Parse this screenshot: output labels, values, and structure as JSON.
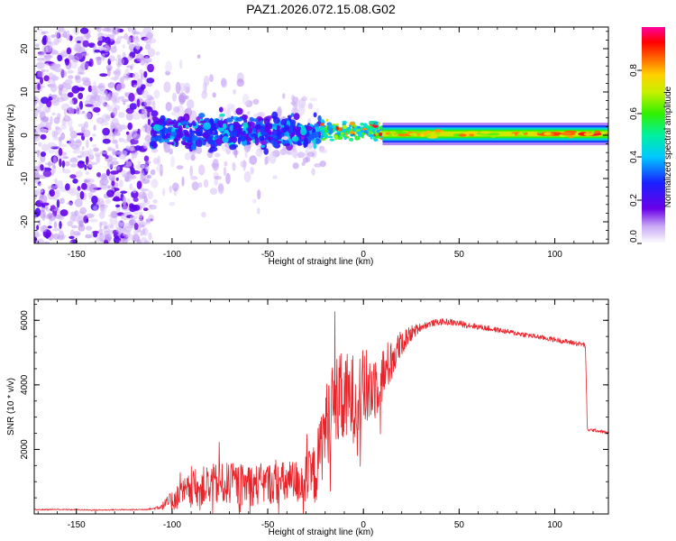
{
  "figure_title": "PAZ1.2026.072.15.08.G02",
  "colors": {
    "snr_line": "#e8232a",
    "axis": "#000000",
    "background": "#ffffff"
  },
  "chart_data": [
    {
      "type": "heatmap",
      "title": "PAZ1.2026.072.15.08.G02",
      "xlabel": "Height of straight line (km)",
      "ylabel": "Frequency (Hz)",
      "xlim": [
        -172,
        128
      ],
      "ylim": [
        -25,
        25
      ],
      "xticks": [
        -150,
        -100,
        -50,
        0,
        50,
        100
      ],
      "yticks": [
        -20,
        -10,
        0,
        10,
        20
      ],
      "xtick_labels": [
        "-150",
        "-100",
        "-50",
        "0",
        "50",
        "100"
      ],
      "ytick_labels": [
        "-20",
        "-10",
        "0",
        "10",
        "20"
      ],
      "grid": false,
      "colorbar": {
        "label": "Normalized spectral amplitude",
        "range": [
          0,
          1
        ],
        "ticks": [
          0.0,
          0.2,
          0.4,
          0.6,
          0.8
        ],
        "tick_labels": [
          "0.0",
          "0.2",
          "0.4",
          "0.6",
          "0.8"
        ],
        "colormap": "rainbow (white-purple-blue-cyan-green-yellow-red-magenta)"
      },
      "regions": [
        {
          "x_range": [
            -172,
            -110
          ],
          "freq_spread": 25,
          "amplitude": 0.05,
          "description": "scattered noise"
        },
        {
          "x_range": [
            -110,
            -22
          ],
          "freq_center": 0.5,
          "freq_spread": 5,
          "amplitude": 0.25
        },
        {
          "x_range": [
            -22,
            10
          ],
          "freq_center": 1,
          "freq_spread": 2,
          "amplitude": 0.6
        },
        {
          "x_range": [
            10,
            128
          ],
          "freq_center": 0,
          "freq_spread": 1,
          "amplitude": 0.9
        }
      ]
    },
    {
      "type": "line",
      "title": "",
      "xlabel": "Height of straight line (km)",
      "ylabel": "SNR (10 * v/v)",
      "xlim": [
        -172,
        128
      ],
      "ylim": [
        0,
        6650
      ],
      "xticks": [
        -150,
        -100,
        -50,
        0,
        50,
        100
      ],
      "yticks": [
        2000,
        4000,
        6000
      ],
      "xtick_labels": [
        "-150",
        "-100",
        "-50",
        "0",
        "50",
        "100"
      ],
      "ytick_labels": [
        "2000",
        "4000",
        "6000"
      ],
      "grid": false,
      "series": [
        {
          "name": "SNR",
          "x": [
            -172,
            -160,
            -150,
            -140,
            -130,
            -120,
            -115,
            -110,
            -105,
            -100,
            -95,
            -90,
            -85,
            -80,
            -75,
            -70,
            -65,
            -60,
            -55,
            -50,
            -45,
            -40,
            -35,
            -30,
            -25,
            -20,
            -15,
            -10,
            -5,
            0,
            5,
            10,
            15,
            20,
            25,
            30,
            35,
            40,
            45,
            50,
            55,
            60,
            65,
            70,
            75,
            80,
            85,
            90,
            95,
            100,
            105,
            110,
            115,
            116,
            117,
            120,
            125,
            128
          ],
          "values": [
            130,
            140,
            130,
            120,
            130,
            130,
            140,
            160,
            250,
            420,
            600,
            750,
            850,
            900,
            900,
            950,
            900,
            900,
            900,
            950,
            950,
            950,
            1000,
            1050,
            1250,
            2700,
            3400,
            3500,
            3600,
            3800,
            3950,
            4300,
            4800,
            5300,
            5600,
            5800,
            5900,
            5950,
            5950,
            5900,
            5850,
            5800,
            5750,
            5700,
            5650,
            5600,
            5550,
            5500,
            5450,
            5400,
            5350,
            5300,
            5250,
            5200,
            2600,
            2600,
            2550,
            2500
          ],
          "noise_amplitude": [
            20,
            20,
            20,
            20,
            20,
            20,
            20,
            30,
            120,
            300,
            450,
            550,
            600,
            650,
            650,
            650,
            650,
            650,
            650,
            650,
            650,
            700,
            700,
            800,
            1000,
            1300,
            1500,
            1500,
            1400,
            1300,
            1200,
            900,
            700,
            400,
            250,
            120,
            100,
            100,
            100,
            100,
            100,
            90,
            90,
            80,
            80,
            80,
            80,
            80,
            80,
            80,
            80,
            80,
            80,
            80,
            50,
            50,
            50,
            50
          ]
        }
      ]
    }
  ]
}
